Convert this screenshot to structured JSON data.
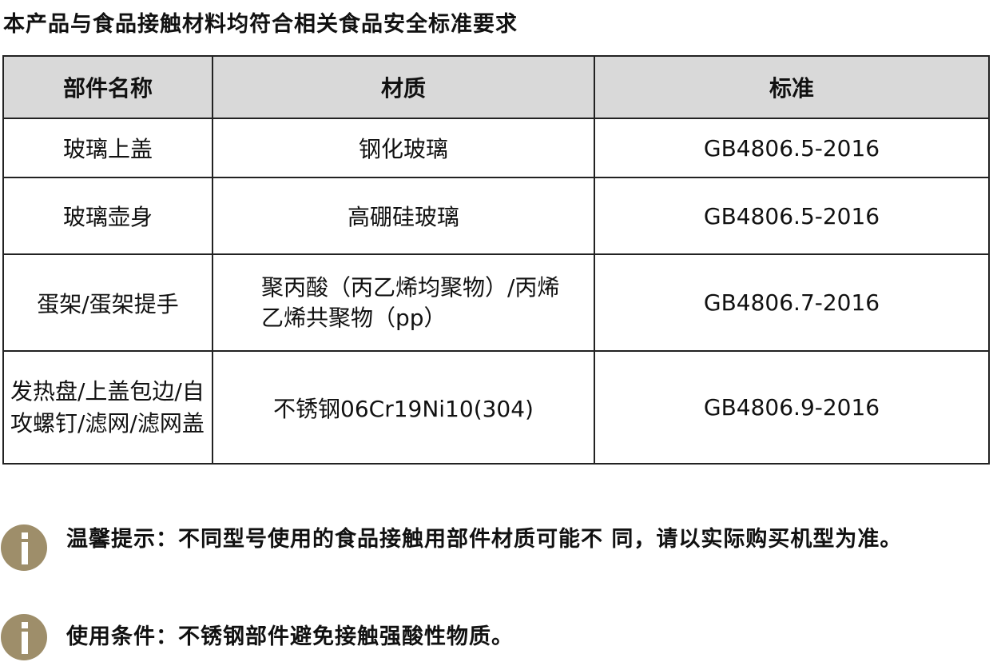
{
  "title": "本产品与食品接触材料均符合相关食品安全标准要求",
  "table": {
    "headers": [
      "部件名称",
      "材质",
      "标准"
    ],
    "rows": [
      {
        "part": "玻璃上盖",
        "material": "钢化玻璃",
        "standard": "GB4806.5-2016"
      },
      {
        "part": "玻璃壶身",
        "material": "高硼硅玻璃",
        "standard": "GB4806.5-2016"
      },
      {
        "part": "蛋架/蛋架提手",
        "material": "聚丙酸（丙乙烯均聚物）/丙烯乙烯共聚物（pp）",
        "standard": "GB4806.7-2016"
      },
      {
        "part": "发热盘/上盖包边/自攻螺钉/滤网/滤网盖",
        "material": "不锈钢06Cr19Ni10(304)",
        "standard": "GB4806.9-2016"
      }
    ]
  },
  "notes": [
    {
      "icon": "info-icon",
      "text": "温馨提示：不同型号使用的食品接触用部件材质可能不 同，请以实际购买机型为准。"
    },
    {
      "icon": "info-icon",
      "text": "使用条件：不锈钢部件避免接触强酸性物质。"
    }
  ],
  "colors": {
    "icon": "#9e8e6a",
    "header_bg": "#d9d9d9"
  }
}
